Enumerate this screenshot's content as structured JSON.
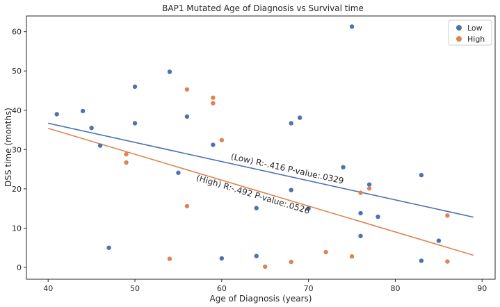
{
  "chart_data": {
    "type": "scatter",
    "title": "BAP1 Mutated Age of Diagnosis vs Survival time",
    "xlabel": "Age of Diagnosis (years)",
    "ylabel": "DSS time (months)",
    "xlim": [
      37.5,
      91.5
    ],
    "ylim": [
      -3,
      64
    ],
    "xticks": [
      40,
      50,
      60,
      70,
      80,
      90
    ],
    "yticks": [
      0,
      10,
      20,
      30,
      40,
      50,
      60
    ],
    "grid": false,
    "legend_position": "top-right",
    "series": [
      {
        "name": "Low",
        "color": "#4c72b0",
        "points": [
          [
            41,
            39.0
          ],
          [
            44,
            39.8
          ],
          [
            45,
            35.5
          ],
          [
            46,
            31.0
          ],
          [
            47,
            5.0
          ],
          [
            50,
            46.0
          ],
          [
            50,
            36.7
          ],
          [
            54,
            49.8
          ],
          [
            55,
            24.1
          ],
          [
            56,
            38.4
          ],
          [
            59,
            31.2
          ],
          [
            60,
            2.3
          ],
          [
            64,
            15.1
          ],
          [
            64,
            2.9
          ],
          [
            68,
            36.7
          ],
          [
            68,
            19.7
          ],
          [
            69,
            38.1
          ],
          [
            70,
            15.0
          ],
          [
            74,
            25.5
          ],
          [
            75,
            61.3
          ],
          [
            76,
            13.8
          ],
          [
            76,
            8.0
          ],
          [
            77,
            21.1
          ],
          [
            78,
            12.9
          ],
          [
            83,
            23.5
          ],
          [
            83,
            1.7
          ],
          [
            85,
            6.8
          ]
        ],
        "fit_line": {
          "x": [
            40,
            89
          ],
          "y": [
            36.7,
            12.8
          ]
        },
        "annotation": "(Low) R:-.416 P-value:.0329"
      },
      {
        "name": "High",
        "color": "#dd8452",
        "points": [
          [
            49,
            28.8
          ],
          [
            49,
            26.7
          ],
          [
            54,
            2.2
          ],
          [
            56,
            45.3
          ],
          [
            56,
            15.6
          ],
          [
            59,
            43.2
          ],
          [
            59,
            41.8
          ],
          [
            60,
            32.4
          ],
          [
            65,
            0.2
          ],
          [
            68,
            1.4
          ],
          [
            72,
            3.9
          ],
          [
            75,
            2.8
          ],
          [
            76,
            19.0
          ],
          [
            77,
            20.1
          ],
          [
            86,
            13.2
          ],
          [
            86,
            1.5
          ]
        ],
        "fit_line": {
          "x": [
            40,
            89
          ],
          "y": [
            35.4,
            3.1
          ]
        },
        "annotation": "(High) R:-.492 P-value:.0526"
      }
    ]
  }
}
